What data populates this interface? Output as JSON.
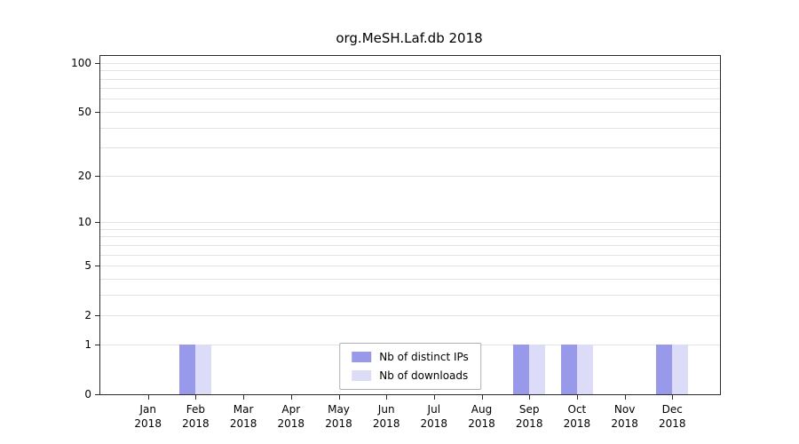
{
  "chart_data": {
    "type": "bar",
    "title": "org.MeSH.Laf.db 2018",
    "year": "2018",
    "months": [
      "Jan",
      "Feb",
      "Mar",
      "Apr",
      "May",
      "Jun",
      "Jul",
      "Aug",
      "Sep",
      "Oct",
      "Nov",
      "Dec"
    ],
    "series": [
      {
        "name": "Nb of distinct IPs",
        "color": "#9999ec",
        "values": [
          0,
          1,
          0,
          0,
          0,
          0,
          0,
          0,
          1,
          1,
          0,
          1
        ]
      },
      {
        "name": "Nb of downloads",
        "color": "#dcdcf8",
        "values": [
          0,
          1,
          0,
          0,
          0,
          0,
          0,
          0,
          1,
          1,
          0,
          1
        ]
      }
    ],
    "yticks": [
      0,
      1,
      2,
      5,
      10,
      20,
      50,
      100
    ],
    "ytick_labels": [
      "0",
      "1",
      "2",
      "5",
      "10",
      "20",
      "50",
      "100"
    ],
    "gridline_values": [
      1,
      2,
      3,
      4,
      5,
      6,
      7,
      8,
      9,
      10,
      20,
      30,
      40,
      50,
      60,
      70,
      80,
      90,
      100
    ],
    "scale": "log1p",
    "ylim": [
      0,
      110
    ],
    "xlabel": "",
    "ylabel": "",
    "grid": true,
    "legend_position": "bottom-center-inside"
  }
}
